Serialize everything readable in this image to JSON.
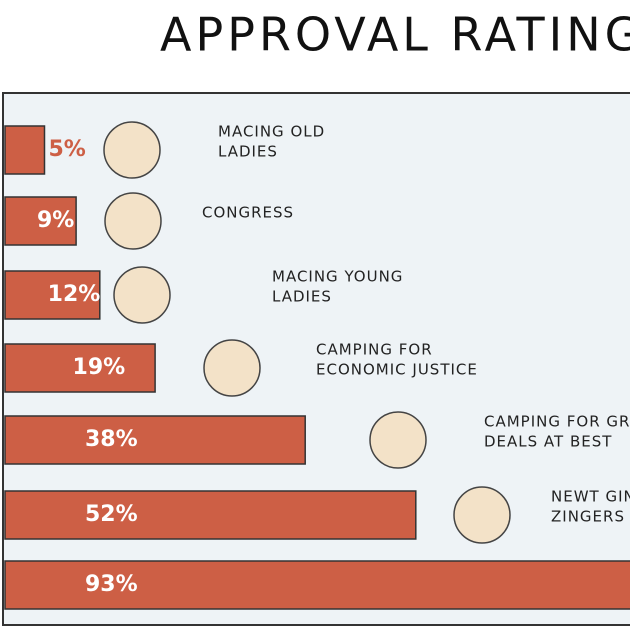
{
  "chart_data": {
    "type": "bar",
    "title": "APPROVAL RATING",
    "categories": [
      [
        "MACING OLD",
        "LADIES"
      ],
      [
        "CONGRESS"
      ],
      [
        "MACING YOUNG",
        "LADIES"
      ],
      [
        "CAMPING FOR",
        "ECONOMIC JUSTICE"
      ],
      [
        "CAMPING FOR GR",
        "DEALS AT BEST"
      ],
      [
        "NEWT GIN",
        "ZINGERS"
      ],
      null
    ],
    "values": [
      5,
      9,
      12,
      19,
      38,
      52,
      93
    ],
    "value_labels": [
      "5%",
      "9%",
      "12%",
      "19%",
      "38%",
      "52%",
      "93%"
    ],
    "color": "#cd5f45"
  }
}
